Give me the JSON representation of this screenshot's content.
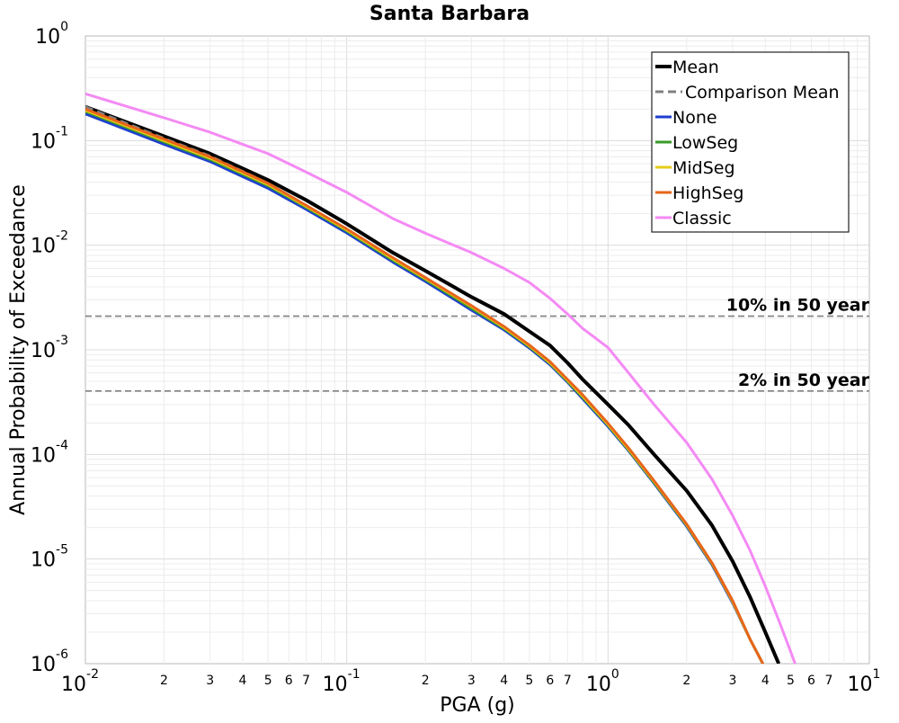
{
  "chart_data": {
    "type": "line",
    "title": "Santa Barbara",
    "xlabel": "PGA (g)",
    "ylabel": "Annual Probability of Exceedance",
    "xscale": "log",
    "yscale": "log",
    "xlim": [
      0.01,
      10
    ],
    "ylim": [
      1e-06,
      1
    ],
    "grid": true,
    "legend_position": "top-right",
    "x_major_ticks": [
      {
        "value": 0.01,
        "base": "10",
        "exp": "-2"
      },
      {
        "value": 0.1,
        "base": "10",
        "exp": "-1"
      },
      {
        "value": 1,
        "base": "10",
        "exp": "0"
      },
      {
        "value": 10,
        "base": "10",
        "exp": "1"
      }
    ],
    "x_minor_ticks": [
      {
        "value": 0.02,
        "label": "2"
      },
      {
        "value": 0.03,
        "label": "3"
      },
      {
        "value": 0.04,
        "label": "4"
      },
      {
        "value": 0.05,
        "label": "5"
      },
      {
        "value": 0.06,
        "label": "6"
      },
      {
        "value": 0.07,
        "label": "7"
      },
      {
        "value": 0.2,
        "label": "2"
      },
      {
        "value": 0.3,
        "label": "3"
      },
      {
        "value": 0.4,
        "label": "4"
      },
      {
        "value": 0.5,
        "label": "5"
      },
      {
        "value": 0.6,
        "label": "6"
      },
      {
        "value": 0.7,
        "label": "7"
      },
      {
        "value": 2,
        "label": "2"
      },
      {
        "value": 3,
        "label": "3"
      },
      {
        "value": 4,
        "label": "4"
      },
      {
        "value": 5,
        "label": "5"
      },
      {
        "value": 6,
        "label": "6"
      },
      {
        "value": 7,
        "label": "7"
      }
    ],
    "y_major_ticks": [
      {
        "value": 1,
        "base": "10",
        "exp": "0"
      },
      {
        "value": 0.1,
        "base": "10",
        "exp": "-1"
      },
      {
        "value": 0.01,
        "base": "10",
        "exp": "-2"
      },
      {
        "value": 0.001,
        "base": "10",
        "exp": "-3"
      },
      {
        "value": 0.0001,
        "base": "10",
        "exp": "-4"
      },
      {
        "value": 1e-05,
        "base": "10",
        "exp": "-5"
      },
      {
        "value": 1e-06,
        "base": "10",
        "exp": "-6"
      }
    ],
    "reference_lines": [
      {
        "label": "10% in 50 year",
        "y": 0.0021,
        "color": "#808080"
      },
      {
        "label": "2% in 50 year",
        "y": 0.000404,
        "color": "#808080"
      }
    ],
    "series": [
      {
        "name": "Mean",
        "color": "#000000",
        "dash": "solid",
        "x": [
          0.01,
          0.02,
          0.03,
          0.05,
          0.07,
          0.1,
          0.15,
          0.2,
          0.3,
          0.4,
          0.5,
          0.6,
          0.7,
          0.8,
          1.0,
          1.2,
          1.5,
          2.0,
          2.5,
          3.0,
          3.5,
          4.0,
          4.5
        ],
        "y": [
          0.21,
          0.11,
          0.075,
          0.042,
          0.027,
          0.016,
          0.0085,
          0.0057,
          0.0032,
          0.0022,
          0.0015,
          0.0011,
          0.00075,
          0.00052,
          0.0003,
          0.00019,
          0.0001,
          4.5e-05,
          2.1e-05,
          9.5e-06,
          4.3e-06,
          2e-06,
          1e-06
        ]
      },
      {
        "name": "Comparison Mean",
        "color": "#808080",
        "dash": "dashed",
        "x": [
          0.01,
          0.02,
          0.03,
          0.05,
          0.07,
          0.1,
          0.15,
          0.2,
          0.3,
          0.4,
          0.5,
          0.6,
          0.7,
          0.8,
          1.0,
          1.2,
          1.5,
          2.0,
          2.5,
          3.0,
          3.5,
          4.0,
          4.3
        ],
        "y": [
          0.21,
          0.105,
          0.071,
          0.039,
          0.024,
          0.014,
          0.0073,
          0.0048,
          0.0026,
          0.00165,
          0.0011,
          0.00075,
          0.0005,
          0.00035,
          0.00019,
          0.00011,
          5.4e-05,
          2.1e-05,
          9e-06,
          3.9e-06,
          1.7e-06,
          9e-07,
          6e-07
        ]
      },
      {
        "name": "None",
        "color": "#1f3fcf",
        "dash": "solid",
        "x": [
          0.01,
          0.02,
          0.03,
          0.05,
          0.07,
          0.1,
          0.15,
          0.2,
          0.3,
          0.4,
          0.5,
          0.6,
          0.7,
          0.8,
          1.0,
          1.2,
          1.5,
          2.0,
          2.5,
          3.0,
          3.5,
          4.0,
          4.3
        ],
        "y": [
          0.18,
          0.092,
          0.063,
          0.035,
          0.022,
          0.0131,
          0.0069,
          0.0045,
          0.0024,
          0.00155,
          0.00104,
          0.00072,
          0.00049,
          0.00034,
          0.000185,
          0.000108,
          5.3e-05,
          2.05e-05,
          8.8e-06,
          3.8e-06,
          1.7e-06,
          9e-07,
          6e-07
        ]
      },
      {
        "name": "LowSeg",
        "color": "#3a9a2a",
        "dash": "solid",
        "x": [
          0.01,
          0.02,
          0.03,
          0.05,
          0.07,
          0.1,
          0.15,
          0.2,
          0.3,
          0.4,
          0.5,
          0.6,
          0.7,
          0.8,
          1.0,
          1.2,
          1.5,
          2.0,
          2.5,
          3.0,
          3.5,
          4.0,
          4.3
        ],
        "y": [
          0.19,
          0.097,
          0.066,
          0.037,
          0.023,
          0.0137,
          0.0072,
          0.0047,
          0.0025,
          0.0016,
          0.00107,
          0.00074,
          0.0005,
          0.00035,
          0.00019,
          0.00011,
          5.4e-05,
          2.1e-05,
          9e-06,
          3.9e-06,
          1.7e-06,
          9e-07,
          6e-07
        ]
      },
      {
        "name": "MidSeg",
        "color": "#e6cc1a",
        "dash": "solid",
        "x": [
          0.01,
          0.02,
          0.03,
          0.05,
          0.07,
          0.1,
          0.15,
          0.2,
          0.3,
          0.4,
          0.5,
          0.6,
          0.7,
          0.8,
          1.0,
          1.2,
          1.5,
          2.0,
          2.5,
          3.0,
          3.5,
          4.0,
          4.3
        ],
        "y": [
          0.195,
          0.1,
          0.068,
          0.038,
          0.0235,
          0.014,
          0.0074,
          0.0048,
          0.0026,
          0.00163,
          0.00109,
          0.00075,
          0.00051,
          0.00036,
          0.000193,
          0.000112,
          5.5e-05,
          2.13e-05,
          9.1e-06,
          3.9e-06,
          1.7e-06,
          9e-07,
          6e-07
        ]
      },
      {
        "name": "HighSeg",
        "color": "#e8651a",
        "dash": "solid",
        "x": [
          0.01,
          0.02,
          0.03,
          0.05,
          0.07,
          0.1,
          0.15,
          0.2,
          0.3,
          0.4,
          0.5,
          0.6,
          0.7,
          0.8,
          1.0,
          1.2,
          1.5,
          2.0,
          2.5,
          3.0,
          3.5,
          4.0,
          4.3
        ],
        "y": [
          0.2,
          0.103,
          0.07,
          0.039,
          0.024,
          0.0143,
          0.0076,
          0.0049,
          0.00265,
          0.00167,
          0.00111,
          0.00077,
          0.00052,
          0.00037,
          0.000198,
          0.000115,
          5.6e-05,
          2.16e-05,
          9.2e-06,
          4e-06,
          1.7e-06,
          9e-07,
          6e-07
        ]
      },
      {
        "name": "Classic",
        "color": "#f48af4",
        "dash": "solid",
        "x": [
          0.01,
          0.02,
          0.03,
          0.05,
          0.07,
          0.1,
          0.15,
          0.2,
          0.3,
          0.4,
          0.5,
          0.6,
          0.7,
          0.8,
          1.0,
          1.2,
          1.5,
          2.0,
          2.5,
          3.0,
          3.5,
          4.0,
          4.5,
          5.0,
          5.6
        ],
        "y": [
          0.28,
          0.165,
          0.12,
          0.075,
          0.05,
          0.032,
          0.018,
          0.013,
          0.0085,
          0.006,
          0.0044,
          0.0031,
          0.0022,
          0.0016,
          0.00105,
          0.0006,
          0.0003,
          0.00013,
          5.8e-05,
          2.6e-05,
          1.2e-05,
          5.5e-06,
          2.6e-06,
          1.3e-06,
          6e-07
        ]
      }
    ]
  }
}
